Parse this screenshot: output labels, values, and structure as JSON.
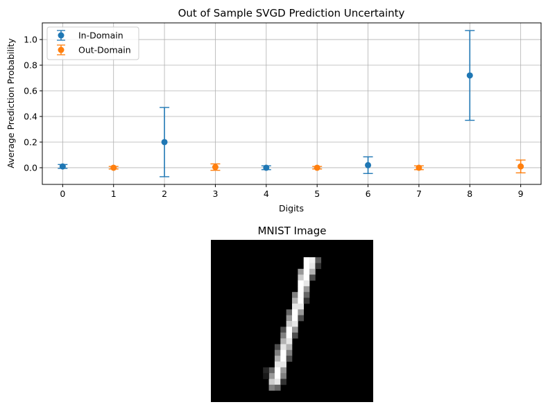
{
  "chart_data": [
    {
      "type": "scatter",
      "title": "Out of Sample SVGD Prediction Uncertainty",
      "xlabel": "Digits",
      "ylabel": "Average Prediction Probability",
      "xlim": [
        -0.4,
        9.4
      ],
      "ylim": [
        -0.13,
        1.13
      ],
      "xticks": [
        0,
        1,
        2,
        3,
        4,
        5,
        6,
        7,
        8,
        9
      ],
      "yticks": [
        0.0,
        0.2,
        0.4,
        0.6,
        0.8,
        1.0
      ],
      "ytick_labels": [
        "0.0",
        "0.2",
        "0.4",
        "0.6",
        "0.8",
        "1.0"
      ],
      "grid": true,
      "legend_position": "top-left",
      "series": [
        {
          "name": "In-Domain",
          "color": "#1f77b4",
          "points": [
            {
              "x": 0,
              "y": 0.01,
              "err": 0.015
            },
            {
              "x": 2,
              "y": 0.2,
              "err": 0.27
            },
            {
              "x": 4,
              "y": 0.0,
              "err": 0.015
            },
            {
              "x": 6,
              "y": 0.02,
              "err": 0.065
            },
            {
              "x": 8,
              "y": 0.72,
              "err": 0.35
            }
          ]
        },
        {
          "name": "Out-Domain",
          "color": "#ff7f0e",
          "points": [
            {
              "x": 1,
              "y": 0.0,
              "err": 0.01
            },
            {
              "x": 3,
              "y": 0.005,
              "err": 0.025
            },
            {
              "x": 5,
              "y": 0.0,
              "err": 0.01
            },
            {
              "x": 7,
              "y": 0.0,
              "err": 0.015
            },
            {
              "x": 9,
              "y": 0.01,
              "err": 0.05
            }
          ]
        }
      ]
    },
    {
      "type": "heatmap",
      "title": "MNIST Image",
      "description_shape": [
        28,
        28
      ],
      "colormap": "gray",
      "strokes": [
        {
          "row": 3,
          "col": 16,
          "v": 1.0
        },
        {
          "row": 3,
          "col": 17,
          "v": 0.95
        },
        {
          "row": 3,
          "col": 18,
          "v": 0.35
        },
        {
          "row": 4,
          "col": 16,
          "v": 1.0
        },
        {
          "row": 4,
          "col": 17,
          "v": 0.9
        },
        {
          "row": 4,
          "col": 18,
          "v": 0.2
        },
        {
          "row": 5,
          "col": 15,
          "v": 0.6
        },
        {
          "row": 5,
          "col": 16,
          "v": 1.0
        },
        {
          "row": 5,
          "col": 17,
          "v": 0.7
        },
        {
          "row": 6,
          "col": 15,
          "v": 0.8
        },
        {
          "row": 6,
          "col": 16,
          "v": 1.0
        },
        {
          "row": 6,
          "col": 17,
          "v": 0.3
        },
        {
          "row": 7,
          "col": 15,
          "v": 1.0
        },
        {
          "row": 7,
          "col": 16,
          "v": 0.9
        },
        {
          "row": 8,
          "col": 15,
          "v": 1.0
        },
        {
          "row": 8,
          "col": 16,
          "v": 0.6
        },
        {
          "row": 9,
          "col": 14,
          "v": 0.5
        },
        {
          "row": 9,
          "col": 15,
          "v": 1.0
        },
        {
          "row": 9,
          "col": 16,
          "v": 0.4
        },
        {
          "row": 10,
          "col": 14,
          "v": 0.7
        },
        {
          "row": 10,
          "col": 15,
          "v": 1.0
        },
        {
          "row": 10,
          "col": 16,
          "v": 0.2
        },
        {
          "row": 11,
          "col": 14,
          "v": 0.9
        },
        {
          "row": 11,
          "col": 15,
          "v": 0.9
        },
        {
          "row": 12,
          "col": 13,
          "v": 0.4
        },
        {
          "row": 12,
          "col": 14,
          "v": 1.0
        },
        {
          "row": 12,
          "col": 15,
          "v": 0.6
        },
        {
          "row": 13,
          "col": 13,
          "v": 0.6
        },
        {
          "row": 13,
          "col": 14,
          "v": 1.0
        },
        {
          "row": 13,
          "col": 15,
          "v": 0.3
        },
        {
          "row": 14,
          "col": 13,
          "v": 0.8
        },
        {
          "row": 14,
          "col": 14,
          "v": 0.9
        },
        {
          "row": 15,
          "col": 12,
          "v": 0.3
        },
        {
          "row": 15,
          "col": 13,
          "v": 1.0
        },
        {
          "row": 15,
          "col": 14,
          "v": 0.6
        },
        {
          "row": 16,
          "col": 12,
          "v": 0.5
        },
        {
          "row": 16,
          "col": 13,
          "v": 1.0
        },
        {
          "row": 16,
          "col": 14,
          "v": 0.3
        },
        {
          "row": 17,
          "col": 12,
          "v": 0.7
        },
        {
          "row": 17,
          "col": 13,
          "v": 0.9
        },
        {
          "row": 18,
          "col": 11,
          "v": 0.3
        },
        {
          "row": 18,
          "col": 12,
          "v": 0.9
        },
        {
          "row": 18,
          "col": 13,
          "v": 0.7
        },
        {
          "row": 19,
          "col": 11,
          "v": 0.5
        },
        {
          "row": 19,
          "col": 12,
          "v": 1.0
        },
        {
          "row": 19,
          "col": 13,
          "v": 0.5
        },
        {
          "row": 20,
          "col": 11,
          "v": 0.7
        },
        {
          "row": 20,
          "col": 12,
          "v": 1.0
        },
        {
          "row": 20,
          "col": 13,
          "v": 0.3
        },
        {
          "row": 21,
          "col": 11,
          "v": 0.9
        },
        {
          "row": 21,
          "col": 12,
          "v": 0.9
        },
        {
          "row": 22,
          "col": 10,
          "v": 0.4
        },
        {
          "row": 22,
          "col": 11,
          "v": 1.0
        },
        {
          "row": 22,
          "col": 12,
          "v": 0.6
        },
        {
          "row": 23,
          "col": 10,
          "v": 0.6
        },
        {
          "row": 23,
          "col": 11,
          "v": 1.0
        },
        {
          "row": 23,
          "col": 12,
          "v": 0.5
        },
        {
          "row": 24,
          "col": 10,
          "v": 0.8
        },
        {
          "row": 24,
          "col": 11,
          "v": 0.9
        },
        {
          "row": 24,
          "col": 12,
          "v": 0.2
        },
        {
          "row": 25,
          "col": 10,
          "v": 0.5
        },
        {
          "row": 25,
          "col": 11,
          "v": 0.4
        },
        {
          "row": 22,
          "col": 9,
          "v": 0.15
        },
        {
          "row": 23,
          "col": 9,
          "v": 0.1
        }
      ]
    }
  ]
}
